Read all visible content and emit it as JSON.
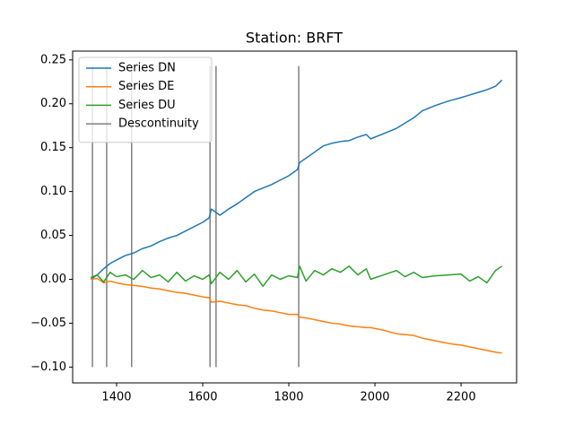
{
  "chart_data": {
    "type": "line",
    "title": "Station: BRFT",
    "x": [
      1340,
      1355,
      1370,
      1385,
      1400,
      1420,
      1440,
      1460,
      1480,
      1500,
      1520,
      1540,
      1560,
      1580,
      1600,
      1615,
      1620,
      1640,
      1660,
      1680,
      1700,
      1720,
      1740,
      1760,
      1780,
      1800,
      1820,
      1825,
      1840,
      1860,
      1880,
      1900,
      1920,
      1940,
      1960,
      1980,
      1990,
      2020,
      2050,
      2070,
      2090,
      2110,
      2140,
      2170,
      2200,
      2220,
      2240,
      2260,
      2280,
      2295
    ],
    "series": [
      {
        "name": "Series DN",
        "color": "#1f77b4",
        "values": [
          0,
          0.005,
          0.012,
          0.018,
          0.022,
          0.027,
          0.03,
          0.035,
          0.038,
          0.043,
          0.047,
          0.05,
          0.055,
          0.06,
          0.065,
          0.07,
          0.08,
          0.073,
          0.08,
          0.086,
          0.093,
          0.1,
          0.104,
          0.108,
          0.113,
          0.118,
          0.125,
          0.133,
          0.138,
          0.145,
          0.152,
          0.155,
          0.157,
          0.158,
          0.162,
          0.165,
          0.16,
          0.166,
          0.172,
          0.178,
          0.184,
          0.192,
          0.198,
          0.203,
          0.207,
          0.21,
          0.213,
          0.216,
          0.22,
          0.227
        ]
      },
      {
        "name": "Series DE",
        "color": "#ff7f0e",
        "values": [
          0,
          0.001,
          -0.004,
          -0.002,
          -0.004,
          -0.006,
          -0.007,
          -0.008,
          -0.01,
          -0.011,
          -0.013,
          -0.015,
          -0.016,
          -0.018,
          -0.02,
          -0.021,
          -0.026,
          -0.025,
          -0.027,
          -0.029,
          -0.03,
          -0.033,
          -0.035,
          -0.036,
          -0.038,
          -0.04,
          -0.04,
          -0.043,
          -0.044,
          -0.046,
          -0.048,
          -0.05,
          -0.051,
          -0.053,
          -0.054,
          -0.055,
          -0.055,
          -0.058,
          -0.062,
          -0.063,
          -0.064,
          -0.067,
          -0.07,
          -0.073,
          -0.075,
          -0.077,
          -0.079,
          -0.081,
          -0.083,
          -0.084
        ]
      },
      {
        "name": "Series DU",
        "color": "#2ca02c",
        "values": [
          0.002,
          0.005,
          -0.003,
          0.008,
          0.003,
          0.005,
          0.0,
          0.01,
          0.002,
          0.005,
          -0.003,
          0.008,
          -0.002,
          0.004,
          0.0,
          0.005,
          -0.005,
          0.008,
          0.0,
          0.01,
          -0.003,
          0.006,
          -0.008,
          0.005,
          0.0,
          0.004,
          0.002,
          0.015,
          -0.002,
          0.01,
          0.005,
          0.012,
          0.008,
          0.015,
          0.005,
          0.012,
          0.0,
          0.005,
          0.01,
          0.003,
          0.008,
          0.002,
          0.004,
          0.005,
          0.006,
          -0.002,
          0.003,
          -0.004,
          0.01,
          0.015
        ]
      }
    ],
    "discontinuities": {
      "name": "Descontinuity",
      "color": "#808080",
      "x": [
        1344,
        1377,
        1435,
        1617,
        1631,
        1823
      ],
      "ymin": -0.1,
      "ymax": 0.243
    },
    "xlim": [
      1298,
      2329
    ],
    "ylim": [
      -0.118,
      0.26
    ],
    "xticks": [
      1400,
      1600,
      1800,
      2000,
      2200
    ],
    "yticks": [
      {
        "value": -0.1,
        "label": "−0.10"
      },
      {
        "value": -0.05,
        "label": "−0.05"
      },
      {
        "value": 0,
        "label": "0.00"
      },
      {
        "value": 0.05,
        "label": "0.05"
      },
      {
        "value": 0.1,
        "label": "0.10"
      },
      {
        "value": 0.15,
        "label": "0.15"
      },
      {
        "value": 0.2,
        "label": "0.20"
      },
      {
        "value": 0.25,
        "label": "0.25"
      }
    ],
    "legend": "upper left"
  }
}
